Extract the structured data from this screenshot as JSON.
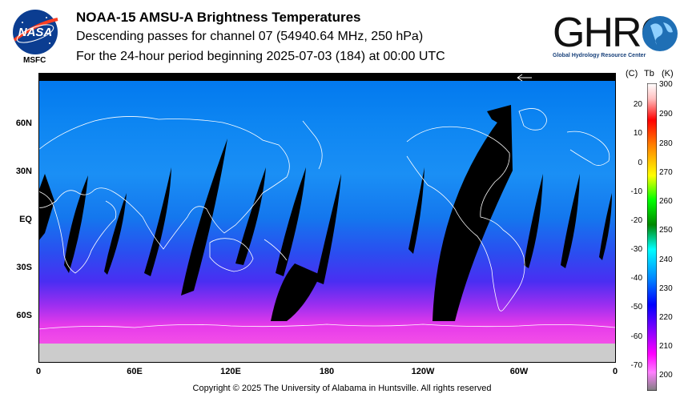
{
  "header": {
    "title": "NOAA-15 AMSU-A Brightness Temperatures",
    "subtitle": "Descending passes for channel 07 (54940.64 MHz, 250 hPa)",
    "period": "For the 24-hour period beginning 2025-07-03 (184) at 00:00 UTC"
  },
  "logos": {
    "nasa_text": "NASA",
    "msfc_text": "MSFC",
    "ghrc_text": "GHRC",
    "ghrc_subtitle": "Global Hydrology Resource Center"
  },
  "map": {
    "lat_labels": [
      "60N",
      "30N",
      "EQ",
      "30S",
      "60S"
    ],
    "lon_labels": [
      "0",
      "60E",
      "120E",
      "180",
      "120W",
      "60W",
      "0"
    ]
  },
  "colorbar": {
    "header_c": "(C)",
    "header_tb": "Tb",
    "header_k": "(K)",
    "celsius_ticks": [
      "20",
      "10",
      "0",
      "-10",
      "-20",
      "-30",
      "-40",
      "-50",
      "-60",
      "-70"
    ],
    "kelvin_ticks": [
      "300",
      "290",
      "280",
      "270",
      "260",
      "250",
      "240",
      "230",
      "220",
      "210",
      "200"
    ],
    "colors": [
      "#ffffff",
      "#ff0000",
      "#ff7f00",
      "#ffff00",
      "#00ff00",
      "#00aa00",
      "#00ffff",
      "#0080ff",
      "#0000ff",
      "#8000ff",
      "#ff00ff",
      "#808080"
    ]
  },
  "footer": {
    "copyright": "Copyright © 2025 The University of Alabama in Huntsville.  All rights reserved"
  }
}
